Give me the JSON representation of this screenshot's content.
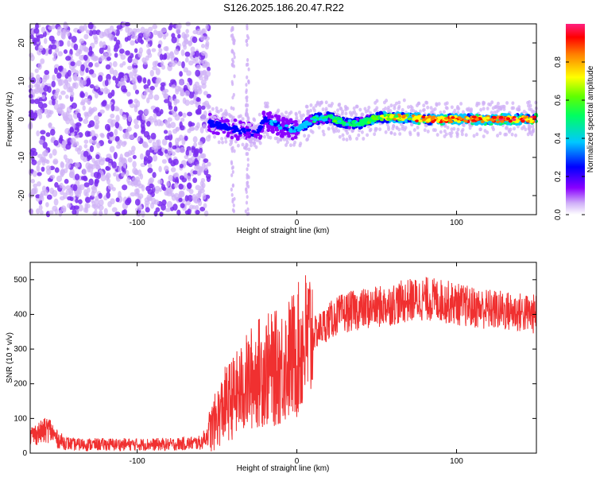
{
  "title": "S126.2025.186.20.47.R22",
  "colors": {
    "snr_line": "#f03030",
    "scatter_dot": "#7a2cf0",
    "scatter_dot_light": "#cfb0f6",
    "colormap": [
      "#ffffff",
      "#c9a8f5",
      "#8a00ff",
      "#0000ff",
      "#00c8ff",
      "#00ff80",
      "#40ff00",
      "#ffff00",
      "#ff8000",
      "#ff0000",
      "#ff2080"
    ]
  },
  "chart_data": [
    {
      "type": "heatmap",
      "xlabel": "Height of straight line (km)",
      "ylabel": "Frequency (Hz)",
      "xlim": [
        -167,
        150
      ],
      "ylim": [
        -25,
        25
      ],
      "xticks": [
        -100,
        0,
        100
      ],
      "xtick_labels": [
        "-100",
        "0",
        "100"
      ],
      "yticks": [
        -20,
        -10,
        0,
        10,
        20
      ],
      "ytick_labels": [
        "-20",
        "-10",
        "0",
        "10",
        "20"
      ],
      "colorbar": {
        "label": "Normalized spectral amplitude",
        "range": [
          0,
          1
        ],
        "ticks": [
          0.0,
          0.2,
          0.4,
          0.6,
          0.8
        ],
        "tick_labels": [
          "0.0",
          "0.2",
          "0.4",
          "0.6",
          "0.8"
        ]
      },
      "noise_region_x": [
        -167,
        -55
      ],
      "signal_track": {
        "x": [
          -55,
          -45,
          -35,
          -25,
          -20,
          -10,
          0,
          10,
          20,
          30,
          40,
          50,
          60,
          70,
          80,
          90,
          100,
          110,
          120,
          130,
          140,
          150
        ],
        "freq": [
          -1,
          -2,
          -3,
          -4,
          0,
          -2,
          -3,
          0,
          0.5,
          -1,
          -1,
          0.5,
          0.5,
          0.5,
          0,
          0,
          0,
          0,
          0,
          0,
          0,
          0
        ],
        "amplitude": [
          0.2,
          0.2,
          0.2,
          0.15,
          0.25,
          0.3,
          0.3,
          0.4,
          0.5,
          0.5,
          0.5,
          0.6,
          0.7,
          0.8,
          0.85,
          0.9,
          0.9,
          0.9,
          0.9,
          0.9,
          0.9,
          0.9
        ]
      }
    },
    {
      "type": "line",
      "xlabel": "Height of straight line (km)",
      "ylabel": "SNR (10 * v/v)",
      "xlim": [
        -167,
        150
      ],
      "ylim": [
        0,
        550
      ],
      "xticks": [
        -100,
        0,
        100
      ],
      "xtick_labels": [
        "-100",
        "0",
        "100"
      ],
      "yticks": [
        0,
        100,
        200,
        300,
        400,
        500
      ],
      "ytick_labels": [
        "0",
        "100",
        "200",
        "300",
        "400",
        "500"
      ],
      "series": [
        {
          "x": [
            -167,
            -160,
            -155,
            -150,
            -145,
            -140,
            -120,
            -100,
            -80,
            -60,
            -55,
            -50,
            -45,
            -40,
            -35,
            -30,
            -25,
            -20,
            -15,
            -10,
            -5,
            0,
            5,
            10,
            15,
            20,
            25,
            30,
            35,
            40,
            50,
            60,
            70,
            80,
            90,
            100,
            110,
            120,
            130,
            140,
            150
          ],
          "y": [
            50,
            60,
            70,
            40,
            30,
            25,
            25,
            25,
            25,
            30,
            60,
            100,
            140,
            160,
            180,
            210,
            230,
            240,
            240,
            250,
            270,
            290,
            320,
            340,
            360,
            380,
            395,
            405,
            410,
            415,
            420,
            430,
            440,
            445,
            440,
            430,
            420,
            415,
            410,
            405,
            400
          ]
        }
      ]
    }
  ]
}
